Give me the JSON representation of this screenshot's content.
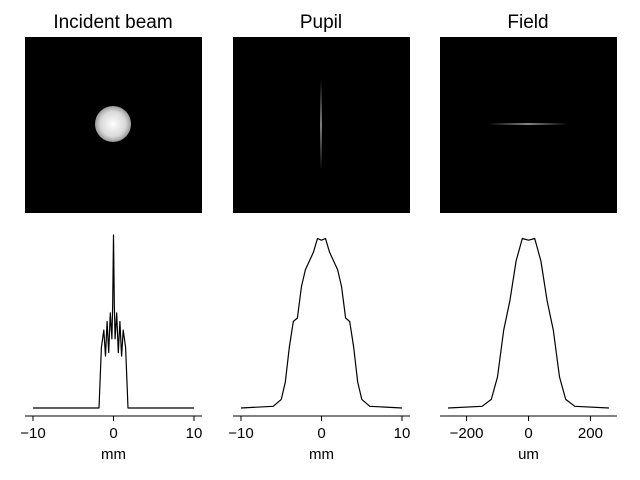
{
  "chart_data": [
    {
      "type": "image",
      "title": "Incident beam",
      "image": "dark square with a single bright circular disk centered slightly left of center, radial gradient white center to gray edge"
    },
    {
      "type": "image",
      "title": "Pupil",
      "image": "dark square with a thin faint vertical line through the center"
    },
    {
      "type": "image",
      "title": "Field",
      "image": "dark square with a thin faint horizontal line through the center"
    },
    {
      "type": "line",
      "xlabel": "mm",
      "xlim": [
        -10,
        10
      ],
      "xticks": [
        -10,
        0,
        10
      ],
      "series": [
        {
          "x": [
            -10,
            -1.8,
            -1.5,
            -1.2,
            -1.0,
            -0.8,
            -0.6,
            -0.4,
            -0.2,
            -0.1,
            0.0,
            0.1,
            0.2,
            0.4,
            0.6,
            0.8,
            1.0,
            1.2,
            1.5,
            1.8,
            10
          ],
          "values": [
            0.0,
            0.0,
            0.35,
            0.45,
            0.3,
            0.5,
            0.32,
            0.55,
            0.4,
            0.6,
            1.0,
            0.6,
            0.4,
            0.55,
            0.32,
            0.5,
            0.3,
            0.45,
            0.35,
            0.0,
            0.0
          ]
        }
      ]
    },
    {
      "type": "line",
      "xlabel": "mm",
      "xlim": [
        -10,
        10
      ],
      "xticks": [
        -10,
        0,
        10
      ],
      "series": [
        {
          "x": [
            -10,
            -6,
            -5,
            -4.5,
            -4,
            -3.5,
            -3,
            -2.5,
            -2,
            -1.5,
            -1,
            -0.5,
            0,
            0.5,
            1,
            1.5,
            2,
            2.5,
            3,
            3.5,
            4,
            4.5,
            5,
            6,
            10
          ],
          "values": [
            0.0,
            0.01,
            0.05,
            0.15,
            0.35,
            0.5,
            0.52,
            0.7,
            0.8,
            0.85,
            0.9,
            0.98,
            0.97,
            0.98,
            0.9,
            0.85,
            0.8,
            0.7,
            0.52,
            0.5,
            0.35,
            0.15,
            0.05,
            0.01,
            0.0
          ]
        }
      ]
    },
    {
      "type": "line",
      "xlabel": "um",
      "xlim": [
        -260,
        260
      ],
      "xticks": [
        -200,
        0,
        200
      ],
      "series": [
        {
          "x": [
            -260,
            -150,
            -120,
            -100,
            -80,
            -60,
            -40,
            -20,
            0,
            20,
            40,
            60,
            80,
            100,
            120,
            150,
            260
          ],
          "values": [
            0.0,
            0.01,
            0.05,
            0.18,
            0.45,
            0.62,
            0.85,
            0.98,
            0.97,
            0.98,
            0.85,
            0.62,
            0.45,
            0.18,
            0.05,
            0.01,
            0.0
          ]
        }
      ]
    }
  ]
}
